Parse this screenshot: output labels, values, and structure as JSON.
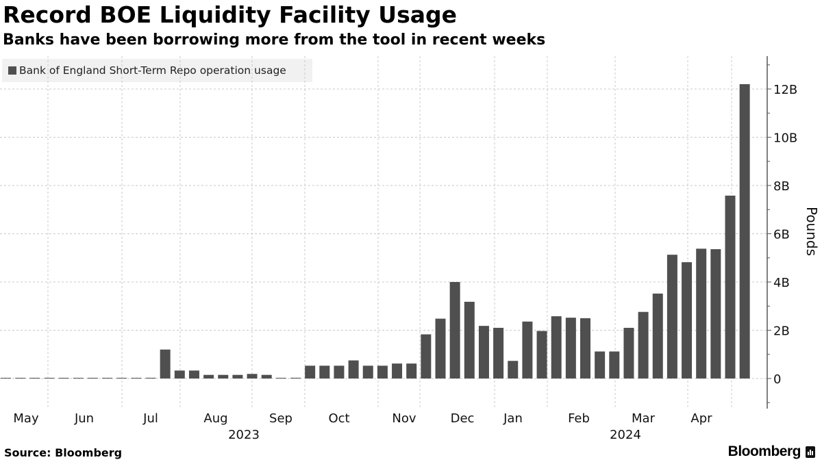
{
  "header": {
    "title": "Record BOE Liquidity Facility Usage",
    "subtitle": "Banks have been borrowing more from the tool in recent weeks"
  },
  "legend": {
    "label": "Bank of England Short-Term Repo operation usage",
    "color": "#4f4f4f"
  },
  "footer": {
    "source": "Source: Bloomberg",
    "brand": "Bloomberg"
  },
  "chart_data": {
    "type": "bar",
    "title": "Record BOE Liquidity Facility Usage",
    "subtitle": "Banks have been borrowing more from the tool in recent weeks",
    "xlabel": "",
    "ylabel": "Pounds",
    "ylim": [
      -1.2,
      13.2
    ],
    "y_axis_side": "right",
    "y_ticks": [
      0,
      2,
      4,
      6,
      8,
      10,
      12
    ],
    "y_tick_labels": [
      "0",
      "2B",
      "4B",
      "6B",
      "8B",
      "10B",
      "12B"
    ],
    "grid": true,
    "legend_position": "top-left",
    "bar_color": "#4f4f4f",
    "x_month_labels": [
      {
        "label": "May",
        "after_bar": 0
      },
      {
        "label": "Jun",
        "after_bar": 5
      },
      {
        "label": "Jul",
        "after_bar": 10
      },
      {
        "label": "Aug",
        "after_bar": 14
      },
      {
        "label": "Sep",
        "after_bar": 19
      },
      {
        "label": "Oct",
        "after_bar": 23
      },
      {
        "label": "Nov",
        "after_bar": 27
      },
      {
        "label": "Dec",
        "after_bar": 31
      },
      {
        "label": "Jan",
        "after_bar": 35
      },
      {
        "label": "Feb",
        "after_bar": 40
      },
      {
        "label": "Mar",
        "after_bar": 44
      },
      {
        "label": "Apr",
        "after_bar": 48
      }
    ],
    "x_year_labels": [
      {
        "label": "2023",
        "center_bar": 16
      },
      {
        "label": "2024",
        "center_bar": 43
      }
    ],
    "series": [
      {
        "name": "Bank of England Short-Term Repo operation usage",
        "unit": "billion GBP",
        "values": [
          0.02,
          0.01,
          0.01,
          0.01,
          0.01,
          0.01,
          0.01,
          0.01,
          0.01,
          0.01,
          0.03,
          1.2,
          0.33,
          0.33,
          0.15,
          0.15,
          0.15,
          0.19,
          0.15,
          0.01,
          0.03,
          0.53,
          0.53,
          0.53,
          0.75,
          0.53,
          0.53,
          0.62,
          0.62,
          1.83,
          2.48,
          4.0,
          3.18,
          2.18,
          2.1,
          0.73,
          2.36,
          1.97,
          2.58,
          2.52,
          2.5,
          1.12,
          1.12,
          2.1,
          2.76,
          3.52,
          5.13,
          4.82,
          5.38,
          5.36,
          7.58,
          12.2
        ]
      }
    ]
  }
}
